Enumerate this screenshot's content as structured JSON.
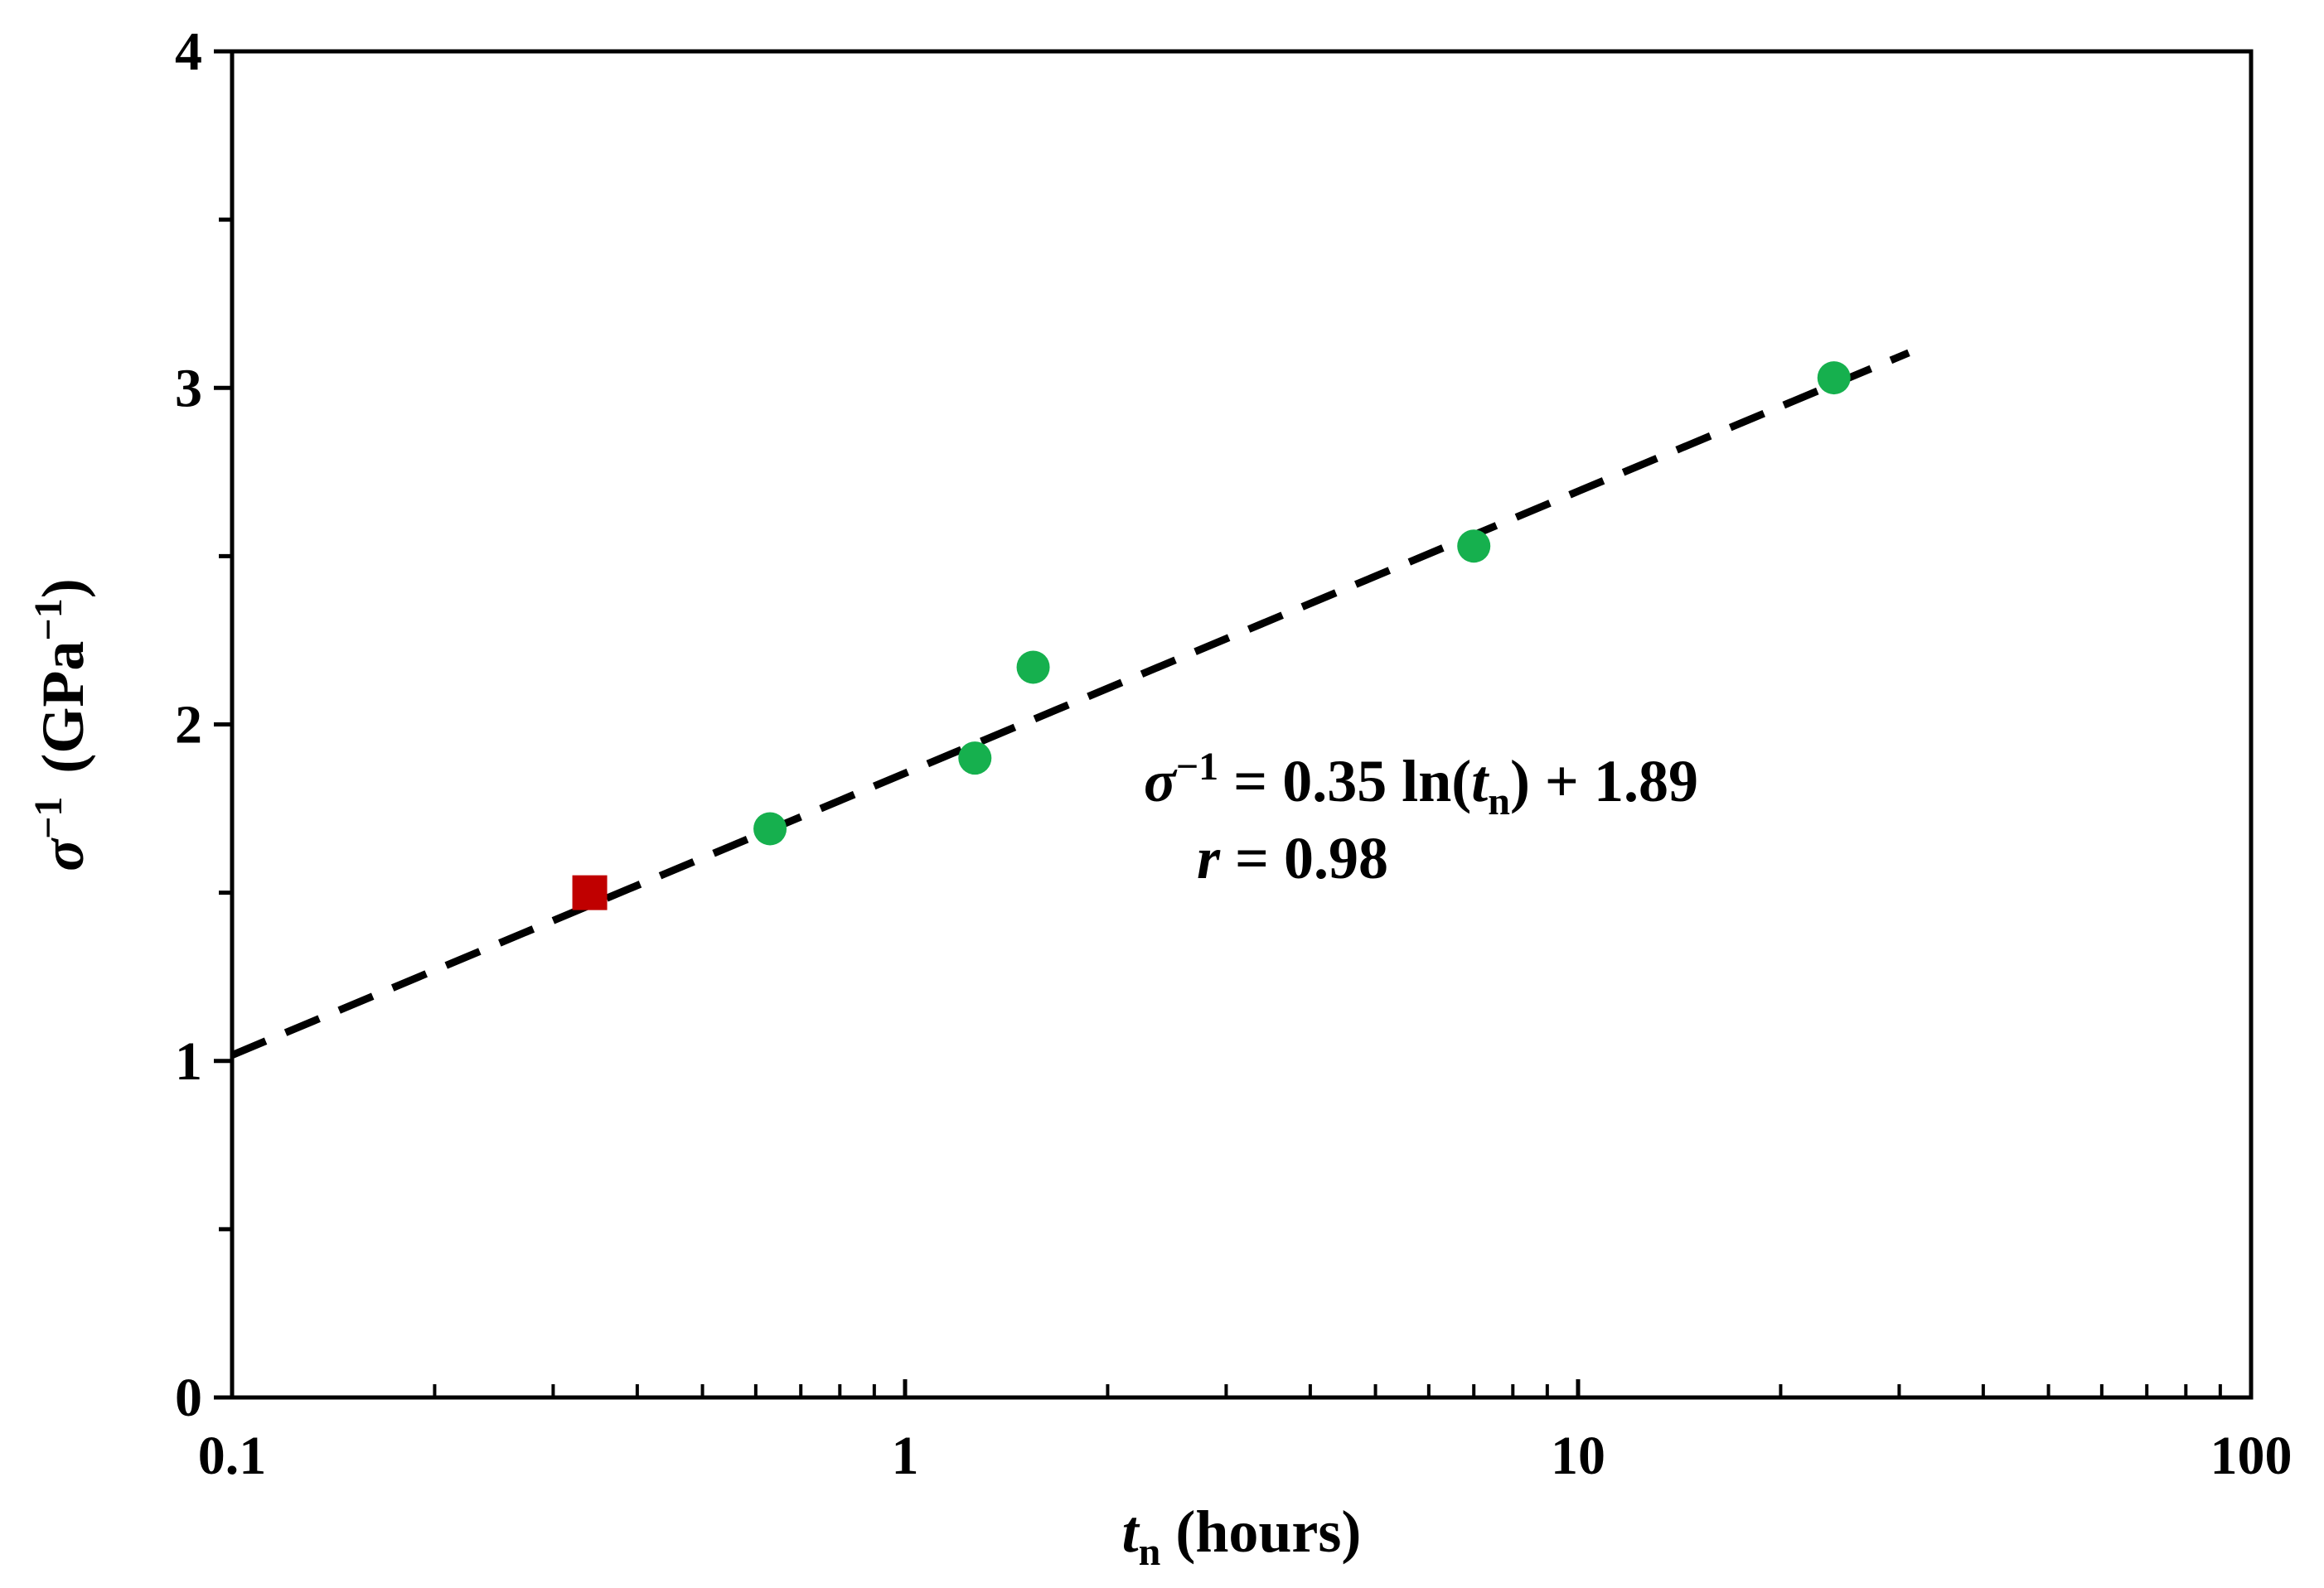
{
  "chart_data": {
    "type": "scatter",
    "x_scale": "log",
    "xlim": [
      0.1,
      100
    ],
    "ylim": [
      0,
      4
    ],
    "x_ticks": [
      "0.1",
      "1",
      "10",
      "100"
    ],
    "y_ticks": [
      "0",
      "1",
      "2",
      "3",
      "4"
    ],
    "xlabel": {
      "symbol": "t",
      "subscript": "n",
      "text": "(hours)"
    },
    "ylabel": {
      "symbol": "σ",
      "superscript": "−1",
      "unit_open": "(GPa",
      "unit_sup": "−1",
      "unit_close": ")"
    },
    "series": [
      {
        "name": "green-points",
        "marker": "circle",
        "color": "#16b04e",
        "points": [
          {
            "x": 0.63,
            "y": 1.69
          },
          {
            "x": 1.27,
            "y": 1.9
          },
          {
            "x": 1.55,
            "y": 2.17
          },
          {
            "x": 7.0,
            "y": 2.53
          },
          {
            "x": 24.0,
            "y": 3.03
          }
        ]
      },
      {
        "name": "red-point",
        "marker": "square",
        "color": "#c00000",
        "points": [
          {
            "x": 0.34,
            "y": 1.5
          }
        ]
      }
    ],
    "fit_line": {
      "style": "dashed",
      "color": "#000000",
      "x_range": [
        0.1,
        31.0
      ],
      "slope": 0.35,
      "intercept": 1.89,
      "plot_intercept": 1.855,
      "plot_slope": 0.3638
    },
    "annotation": {
      "eq_sigma": "σ",
      "eq_sup": "−1",
      "eq_middle": " = 0.35 ln(",
      "eq_t": "t",
      "eq_sub": "n",
      "eq_end": ") + 1.89",
      "r_symbol": "r",
      "r_text": " = 0.98"
    }
  }
}
